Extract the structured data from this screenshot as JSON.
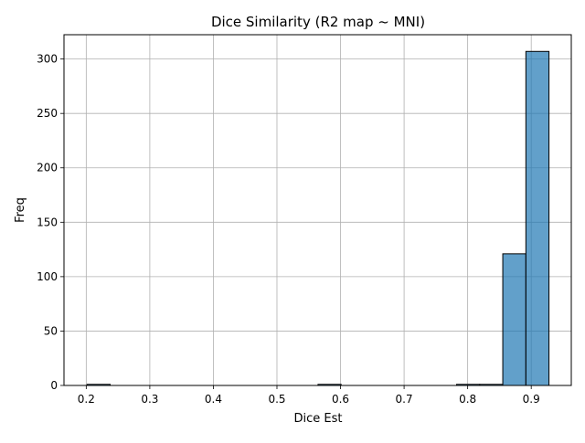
{
  "chart_data": {
    "type": "bar",
    "title": "Dice Similarity (R2 map ~ MNI)",
    "xlabel": "Dice Est",
    "ylabel": "Freq",
    "xlim": [
      0.165,
      0.963
    ],
    "ylim": [
      0,
      322.35
    ],
    "xticks": [
      0.2,
      0.3,
      0.4,
      0.5,
      0.6,
      0.7,
      0.8,
      0.9
    ],
    "xtick_labels": [
      "0.2",
      "0.3",
      "0.4",
      "0.5",
      "0.6",
      "0.7",
      "0.8",
      "0.9"
    ],
    "yticks": [
      0,
      50,
      100,
      150,
      200,
      250,
      300
    ],
    "ytick_labels": [
      "0",
      "50",
      "100",
      "150",
      "200",
      "250",
      "300"
    ],
    "grid": true,
    "bin_start": 0.2013,
    "bin_width": 0.03633,
    "values": [
      1,
      0,
      0,
      0,
      0,
      0,
      0,
      0,
      0,
      0,
      1,
      0,
      0,
      0,
      0,
      0,
      1,
      1,
      121,
      307
    ],
    "colors": {
      "bar_fill": "#1f77b4",
      "bar_edge": "#000000",
      "grid": "#b0b0b0"
    }
  }
}
